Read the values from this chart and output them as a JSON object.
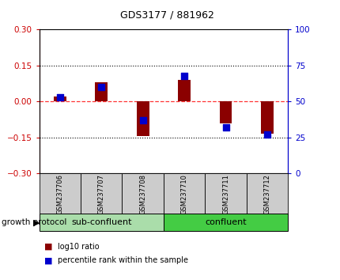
{
  "title": "GDS3177 / 881962",
  "samples": [
    "GSM237706",
    "GSM237707",
    "GSM237708",
    "GSM237710",
    "GSM237711",
    "GSM237712"
  ],
  "log10_ratio": [
    0.02,
    0.08,
    -0.145,
    0.09,
    -0.09,
    -0.135
  ],
  "percentile_rank": [
    53,
    60,
    37,
    68,
    32,
    27
  ],
  "groups": [
    {
      "label": "sub-confluent",
      "n": 3
    },
    {
      "label": "confluent",
      "n": 3
    }
  ],
  "group_label": "growth protocol",
  "ylim_left": [
    -0.3,
    0.3
  ],
  "ylim_right": [
    0,
    100
  ],
  "yticks_left": [
    -0.3,
    -0.15,
    0,
    0.15,
    0.3
  ],
  "yticks_right": [
    0,
    25,
    50,
    75,
    100
  ],
  "dotted_lines": [
    -0.15,
    0.15
  ],
  "bar_color": "#8B0000",
  "dot_color": "#0000CD",
  "bar_width": 0.3,
  "dot_size": 28,
  "left_label_color": "#CC0000",
  "right_label_color": "#0000CC",
  "background_color": "#ffffff",
  "plot_bg_color": "#ffffff",
  "group_box_color_1": "#aaddaa",
  "group_box_color_2": "#44cc44",
  "legend_ratio_label": "log10 ratio",
  "legend_pct_label": "percentile rank within the sample"
}
